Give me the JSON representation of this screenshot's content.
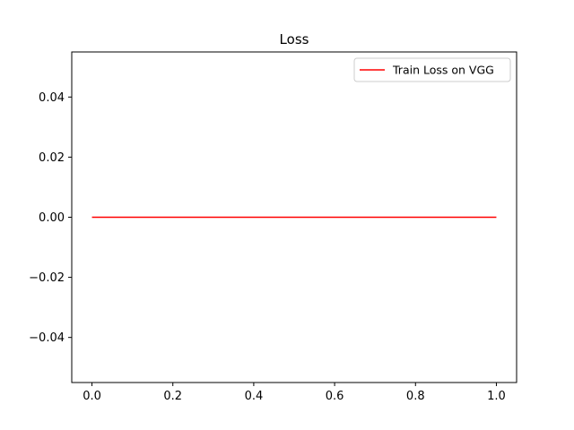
{
  "chart_data": {
    "type": "line",
    "title": "Loss",
    "xlabel": "",
    "ylabel": "",
    "xlim": [
      -0.05,
      1.05
    ],
    "ylim": [
      -0.055,
      0.055
    ],
    "x_ticks": [
      0.0,
      0.2,
      0.4,
      0.6,
      0.8,
      1.0
    ],
    "x_tick_labels": [
      "0.0",
      "0.2",
      "0.4",
      "0.6",
      "0.8",
      "1.0"
    ],
    "y_ticks": [
      -0.04,
      -0.02,
      0.0,
      0.02,
      0.04
    ],
    "y_tick_labels": [
      "−0.04",
      "−0.02",
      "0.00",
      "0.02",
      "0.04"
    ],
    "grid": false,
    "legend_position": "top-right",
    "series": [
      {
        "name": "Train Loss on VGG",
        "color": "#ff0000",
        "x": [
          0,
          1
        ],
        "y": [
          0.0,
          0.0
        ]
      }
    ]
  }
}
